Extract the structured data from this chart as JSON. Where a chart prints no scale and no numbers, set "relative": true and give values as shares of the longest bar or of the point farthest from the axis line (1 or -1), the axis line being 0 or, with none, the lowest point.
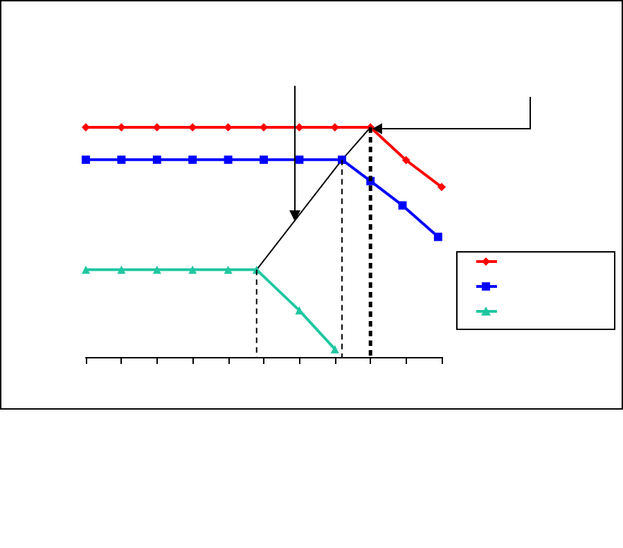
{
  "chart_data": {
    "type": "line",
    "relative": true,
    "categories": [
      null,
      null,
      null,
      null,
      null,
      null,
      null,
      null,
      null,
      null,
      null,
      null,
      null,
      null,
      null,
      null,
      null,
      null,
      null,
      null,
      null,
      null,
      null,
      null,
      null,
      null,
      null,
      null,
      null,
      null,
      null,
      null,
      null,
      null,
      null,
      null,
      null,
      null,
      null,
      null,
      null,
      null,
      null,
      null,
      null,
      null,
      null,
      null,
      null,
      null,
      null,
      null,
      null,
      null,
      null,
      null,
      null,
      null,
      null,
      null,
      null,
      null,
      null,
      null,
      null,
      null,
      null,
      null,
      null,
      null,
      null,
      null,
      null,
      null,
      null,
      null,
      null,
      null,
      null,
      null,
      null,
      null,
      null,
      null,
      null,
      null,
      null,
      null,
      null,
      null,
      null,
      null,
      null,
      null,
      null,
      null,
      null,
      null,
      null,
      null,
      null
    ],
    "grid": false,
    "line_style": "solid",
    "series": [
      {
        "color": "#ff0000",
        "marker": "diamond",
        "values": [
          1,
          null,
          null,
          null,
          null,
          null,
          null,
          null,
          null,
          null,
          1,
          null,
          null,
          null,
          null,
          null,
          null,
          null,
          null,
          null,
          1,
          null,
          null,
          null,
          null,
          null,
          null,
          null,
          null,
          null,
          1,
          null,
          null,
          null,
          null,
          null,
          null,
          null,
          null,
          null,
          1,
          null,
          null,
          null,
          null,
          null,
          null,
          null,
          null,
          null,
          1,
          null,
          null,
          null,
          null,
          null,
          null,
          null,
          null,
          null,
          1,
          null,
          null,
          null,
          null,
          null,
          null,
          null,
          null,
          null,
          1,
          null,
          null,
          null,
          null,
          null,
          null,
          null,
          null,
          null,
          1,
          null,
          null,
          null,
          null,
          null,
          null,
          null,
          null,
          null,
          0.857,
          null,
          null,
          null,
          null,
          null,
          null,
          null,
          null,
          null,
          0.74
        ]
      },
      {
        "color": "#0000ff",
        "marker": "square",
        "values": [
          0.859,
          null,
          null,
          null,
          null,
          null,
          null,
          null,
          null,
          null,
          0.859,
          null,
          null,
          null,
          null,
          null,
          null,
          null,
          null,
          null,
          0.859,
          null,
          null,
          null,
          null,
          null,
          null,
          null,
          null,
          null,
          0.859,
          null,
          null,
          null,
          null,
          null,
          null,
          null,
          null,
          null,
          0.859,
          null,
          null,
          null,
          null,
          null,
          null,
          null,
          null,
          null,
          0.859,
          null,
          null,
          null,
          null,
          null,
          null,
          null,
          null,
          null,
          0.859,
          null,
          null,
          null,
          null,
          null,
          null,
          null,
          null,
          null,
          null,
          null,
          0.859,
          null,
          null,
          null,
          null,
          null,
          null,
          null,
          0.766,
          null,
          null,
          null,
          null,
          null,
          null,
          null,
          null,
          0.66,
          null,
          null,
          null,
          null,
          null,
          null,
          null,
          null,
          null,
          0.523,
          null
        ]
      },
      {
        "color": "#1fc7a0",
        "marker": "triangle",
        "values": [
          0.38,
          null,
          null,
          null,
          null,
          null,
          null,
          null,
          null,
          null,
          0.38,
          null,
          null,
          null,
          null,
          null,
          null,
          null,
          null,
          null,
          0.38,
          null,
          null,
          null,
          null,
          null,
          null,
          null,
          null,
          null,
          0.38,
          null,
          null,
          null,
          null,
          null,
          null,
          null,
          null,
          null,
          0.38,
          null,
          null,
          null,
          null,
          null,
          null,
          null,
          0.38,
          null,
          null,
          null,
          null,
          null,
          null,
          null,
          null,
          null,
          null,
          null,
          0.203,
          null,
          null,
          null,
          null,
          null,
          null,
          null,
          null,
          null,
          0.034,
          null,
          null,
          null,
          null,
          null,
          null,
          null,
          null,
          null,
          null,
          null,
          null,
          null,
          null,
          null,
          null,
          null,
          null,
          null,
          null,
          null,
          null,
          null,
          null,
          null,
          null,
          null,
          null,
          null,
          null
        ]
      },
      {
        "color": "#000000",
        "marker": "none",
        "values": [
          null,
          null,
          null,
          null,
          null,
          null,
          null,
          null,
          null,
          null,
          null,
          null,
          null,
          null,
          null,
          null,
          null,
          null,
          null,
          null,
          null,
          null,
          null,
          null,
          null,
          null,
          null,
          null,
          null,
          null,
          null,
          null,
          null,
          null,
          null,
          null,
          null,
          null,
          null,
          null,
          null,
          null,
          null,
          null,
          null,
          null,
          null,
          null,
          0.38,
          null,
          null,
          null,
          null,
          null,
          null,
          null,
          null,
          null,
          null,
          null,
          null,
          null,
          null,
          null,
          null,
          null,
          null,
          null,
          null,
          null,
          null,
          null,
          0.859,
          null,
          null,
          null,
          null,
          null,
          null,
          null,
          1,
          null,
          null,
          null,
          null,
          null,
          null,
          null,
          null,
          null,
          null,
          null,
          null,
          null,
          null,
          null,
          null,
          null,
          null,
          null,
          null
        ]
      }
    ]
  }
}
